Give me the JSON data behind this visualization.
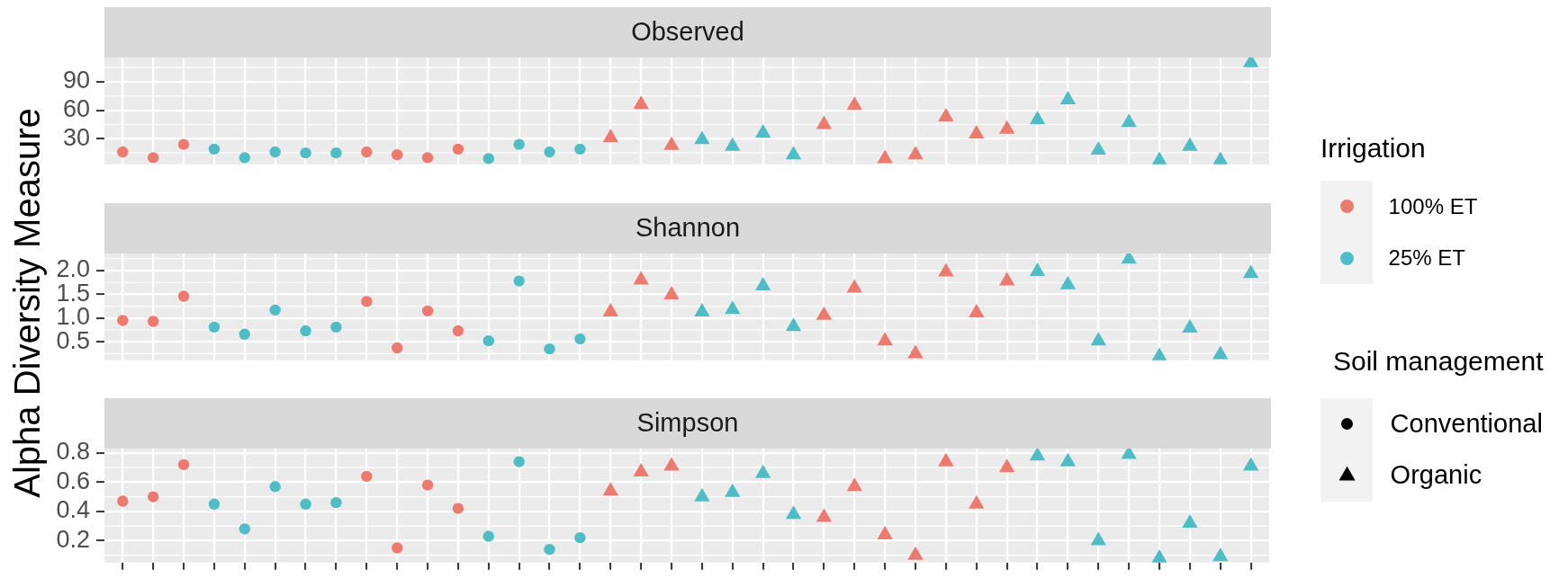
{
  "chart_data": [
    {
      "type": "scatter",
      "title": "Observed",
      "categories": [
        null,
        null,
        null,
        null,
        null,
        null,
        null,
        null,
        null,
        null,
        null,
        null,
        null,
        null,
        null,
        null,
        null,
        null,
        null,
        null,
        null,
        null,
        null,
        null,
        null,
        null,
        null,
        null,
        null,
        null,
        null,
        null,
        null,
        null,
        null,
        null,
        null,
        null
      ],
      "series": [
        {
          "color": "#ed7a6e",
          "marker": "circle",
          "values": [
            16,
            10,
            24,
            null,
            null,
            null,
            null,
            null,
            16,
            13,
            10,
            19,
            null,
            null,
            null,
            null,
            null,
            null,
            null,
            null,
            null,
            null,
            null,
            null,
            null,
            null,
            null,
            null,
            null,
            null,
            null,
            null,
            null,
            null,
            null,
            null,
            null,
            null
          ]
        },
        {
          "color": "#4fbdc6",
          "marker": "circle",
          "values": [
            null,
            null,
            null,
            19,
            10,
            16,
            15,
            15,
            null,
            null,
            null,
            null,
            9,
            24,
            16,
            19,
            null,
            null,
            null,
            null,
            null,
            null,
            null,
            null,
            null,
            null,
            null,
            null,
            null,
            null,
            null,
            null,
            null,
            null,
            null,
            null,
            null,
            null
          ]
        },
        {
          "color": "#ed7a6e",
          "marker": "triangle",
          "values": [
            null,
            null,
            null,
            null,
            null,
            null,
            null,
            null,
            null,
            null,
            null,
            null,
            null,
            null,
            null,
            null,
            31,
            66,
            23,
            null,
            null,
            null,
            null,
            45,
            65,
            9,
            13,
            53,
            35,
            40,
            null,
            null,
            null,
            null,
            null,
            null,
            null,
            null
          ]
        },
        {
          "color": "#4fbdc6",
          "marker": "triangle",
          "values": [
            null,
            null,
            null,
            null,
            null,
            null,
            null,
            null,
            null,
            null,
            null,
            null,
            null,
            null,
            null,
            null,
            null,
            null,
            null,
            29,
            22,
            36,
            13,
            null,
            null,
            null,
            null,
            null,
            null,
            null,
            50,
            71,
            18,
            47,
            7,
            22,
            7,
            110
          ]
        }
      ],
      "ylim": [
        3,
        115.5
      ],
      "yticks": [
        30,
        60,
        90
      ],
      "grid": true,
      "tick_labels": "y"
    },
    {
      "type": "scatter",
      "title": "Shannon",
      "ylabel": "Alpha Diversity Measure",
      "legend": "right",
      "legend_title": "Irrigation",
      "annotations": [
        "Soil management",
        "Conventional",
        "Organic"
      ],
      "categories": [
        null,
        null,
        null,
        null,
        null,
        null,
        null,
        null,
        null,
        null,
        null,
        null,
        null,
        null,
        null,
        null,
        null,
        null,
        null,
        null,
        null,
        null,
        null,
        null,
        null,
        null,
        null,
        null,
        null,
        null,
        null,
        null,
        null,
        null,
        null,
        null,
        null,
        null
      ],
      "series": [
        {
          "name": "100% ET",
          "color": "#ed7a6e",
          "marker": "circle",
          "values": [
            0.95,
            0.93,
            1.46,
            null,
            null,
            null,
            null,
            null,
            1.35,
            0.37,
            1.15,
            0.73,
            null,
            null,
            null,
            null,
            null,
            null,
            null,
            null,
            null,
            null,
            null,
            null,
            null,
            null,
            null,
            null,
            null,
            null,
            null,
            null,
            null,
            null,
            null,
            null,
            null,
            null
          ]
        },
        {
          "name": "25% ET",
          "color": "#4fbdc6",
          "marker": "circle",
          "values": [
            null,
            null,
            null,
            0.81,
            0.66,
            1.17,
            0.73,
            0.81,
            null,
            null,
            null,
            null,
            0.52,
            1.78,
            0.35,
            0.56,
            null,
            null,
            null,
            null,
            null,
            null,
            null,
            null,
            null,
            null,
            null,
            null,
            null,
            null,
            null,
            null,
            null,
            null,
            null,
            null,
            null,
            null
          ]
        },
        {
          "color": "#ed7a6e",
          "marker": "triangle",
          "values": [
            null,
            null,
            null,
            null,
            null,
            null,
            null,
            null,
            null,
            null,
            null,
            null,
            null,
            null,
            null,
            null,
            1.13,
            1.8,
            1.49,
            null,
            null,
            null,
            null,
            1.06,
            1.63,
            0.52,
            0.25,
            1.97,
            1.11,
            1.78,
            null,
            null,
            null,
            null,
            null,
            null,
            null,
            null
          ]
        },
        {
          "color": "#4fbdc6",
          "marker": "triangle",
          "values": [
            null,
            null,
            null,
            null,
            null,
            null,
            null,
            null,
            null,
            null,
            null,
            null,
            null,
            null,
            null,
            null,
            null,
            null,
            null,
            1.13,
            1.18,
            1.68,
            0.82,
            null,
            null,
            null,
            null,
            null,
            null,
            null,
            1.98,
            1.7,
            0.52,
            2.24,
            0.19,
            0.79,
            0.23,
            1.94
          ]
        }
      ],
      "ylim": [
        0.11,
        2.36
      ],
      "yticks": [
        0.5,
        {
          "value": 1,
          "label": "1.0"
        },
        1.5,
        {
          "value": 2,
          "label": "2.0"
        }
      ],
      "grid": true,
      "tick_labels": "y"
    },
    {
      "type": "scatter",
      "title": "Simpson",
      "categories": [
        null,
        null,
        null,
        null,
        null,
        null,
        null,
        null,
        null,
        null,
        null,
        null,
        null,
        null,
        null,
        null,
        null,
        null,
        null,
        null,
        null,
        null,
        null,
        null,
        null,
        null,
        null,
        null,
        null,
        null,
        null,
        null,
        null,
        null,
        null,
        null,
        null,
        null
      ],
      "series": [
        {
          "color": "#ed7a6e",
          "marker": "circle",
          "values": [
            0.47,
            0.5,
            0.72,
            null,
            null,
            null,
            null,
            null,
            0.64,
            0.15,
            0.58,
            0.42,
            null,
            null,
            null,
            null,
            null,
            null,
            null,
            null,
            null,
            null,
            null,
            null,
            null,
            null,
            null,
            null,
            null,
            null,
            null,
            null,
            null,
            null,
            null,
            null,
            null,
            null
          ]
        },
        {
          "color": "#4fbdc6",
          "marker": "circle",
          "values": [
            null,
            null,
            null,
            0.45,
            0.28,
            0.57,
            0.45,
            0.46,
            null,
            null,
            null,
            null,
            0.23,
            0.74,
            0.14,
            0.22,
            null,
            null,
            null,
            null,
            null,
            null,
            null,
            null,
            null,
            null,
            null,
            null,
            null,
            null,
            null,
            null,
            null,
            null,
            null,
            null,
            null,
            null
          ]
        },
        {
          "color": "#ed7a6e",
          "marker": "triangle",
          "values": [
            null,
            null,
            null,
            null,
            null,
            null,
            null,
            null,
            null,
            null,
            null,
            null,
            null,
            null,
            null,
            null,
            0.54,
            0.67,
            0.71,
            null,
            null,
            null,
            null,
            0.36,
            0.57,
            0.24,
            0.1,
            0.74,
            0.45,
            0.7,
            null,
            null,
            null,
            null,
            null,
            null,
            null,
            null
          ]
        },
        {
          "color": "#4fbdc6",
          "marker": "triangle",
          "values": [
            null,
            null,
            null,
            null,
            null,
            null,
            null,
            null,
            null,
            null,
            null,
            null,
            null,
            null,
            null,
            null,
            null,
            null,
            null,
            0.5,
            0.53,
            0.66,
            0.38,
            null,
            null,
            null,
            null,
            null,
            null,
            null,
            0.78,
            0.74,
            0.2,
            0.79,
            0.08,
            0.32,
            0.09,
            0.71
          ]
        }
      ],
      "ylim": [
        0.05,
        0.83
      ],
      "yticks": [
        0.2,
        0.4,
        0.6,
        0.8
      ],
      "grid": true,
      "tick_labels": "y"
    }
  ]
}
